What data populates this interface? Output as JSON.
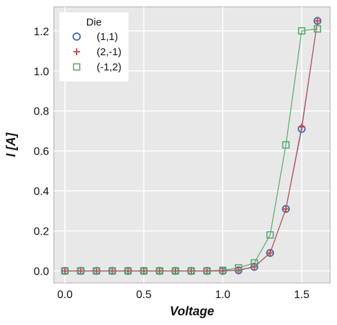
{
  "chart_data": {
    "type": "line",
    "xlabel": "Voltage",
    "ylabel": "I [A]",
    "xlim": [
      -0.07,
      1.68
    ],
    "ylim": [
      -0.06,
      1.32
    ],
    "xticks": [
      "0.0",
      "0.5",
      "1.0",
      "1.5"
    ],
    "xtick_values": [
      0.0,
      0.5,
      1.0,
      1.5
    ],
    "yticks": [
      "0.0",
      "0.2",
      "0.4",
      "0.6",
      "0.8",
      "1.0",
      "1.2"
    ],
    "ytick_values": [
      0.0,
      0.2,
      0.4,
      0.6,
      0.8,
      1.0,
      1.2
    ],
    "grid": true,
    "background": "#e8e8e8",
    "legend": {
      "title": "Die",
      "placement": "top-left"
    },
    "x": [
      0.0,
      0.1,
      0.2,
      0.3,
      0.4,
      0.5,
      0.6,
      0.7,
      0.8,
      0.9,
      1.0,
      1.1,
      1.2,
      1.3,
      1.4,
      1.5,
      1.6
    ],
    "series": [
      {
        "name": "(1,1)",
        "marker": "circle",
        "color": "#4c72b0",
        "line_color": "#4c72b0",
        "values": [
          0.0,
          0.0,
          0.0,
          0.0,
          0.0,
          0.0,
          0.0,
          0.0,
          0.0,
          0.0,
          0.0,
          0.003,
          0.02,
          0.09,
          0.31,
          0.71,
          1.25
        ]
      },
      {
        "name": "(2,-1)",
        "marker": "plus",
        "color": "#c44e52",
        "line_color": "#c44e52",
        "values": [
          0.0,
          0.0,
          0.0,
          0.0,
          0.0,
          0.0,
          0.0,
          0.0,
          0.0,
          0.0,
          0.0,
          0.004,
          0.021,
          0.09,
          0.31,
          0.72,
          1.25
        ]
      },
      {
        "name": "(-1,2)",
        "marker": "square",
        "color": "#55a868",
        "line_color": "#55a868",
        "values": [
          0.0,
          0.0,
          0.0,
          0.0,
          0.0,
          0.0,
          0.0,
          0.0,
          0.0,
          0.0,
          0.003,
          0.015,
          0.04,
          0.18,
          0.63,
          1.2,
          1.21
        ]
      }
    ]
  }
}
